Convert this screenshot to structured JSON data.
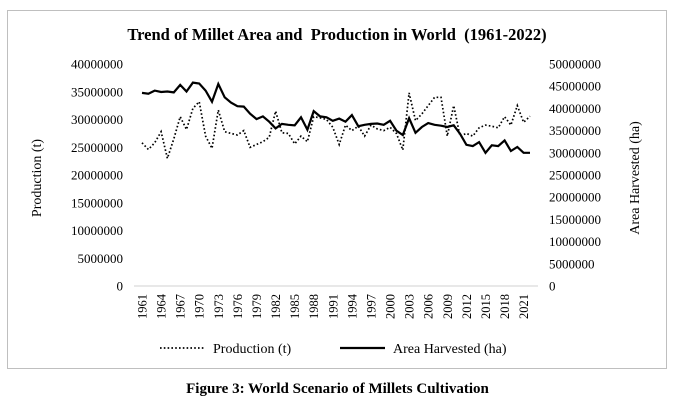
{
  "chart_data": {
    "type": "line",
    "title": "Trend of Millet Area and  Production in World  (1961-2022)",
    "xlabel": "",
    "ylabel": "Production (t)",
    "ylabel_right": "Area Harvested (ha)",
    "ylim": [
      0,
      40000000
    ],
    "ylim_right": [
      0,
      50000000
    ],
    "yticks": [
      "0",
      "5000000",
      "10000000",
      "15000000",
      "20000000",
      "25000000",
      "30000000",
      "35000000",
      "40000000"
    ],
    "yticks_right": [
      "0",
      "5000000",
      "10000000",
      "15000000",
      "20000000",
      "25000000",
      "30000000",
      "35000000",
      "40000000",
      "45000000",
      "50000000"
    ],
    "x": [
      1961,
      1962,
      1963,
      1964,
      1965,
      1966,
      1967,
      1968,
      1969,
      1970,
      1971,
      1972,
      1973,
      1974,
      1975,
      1976,
      1977,
      1978,
      1979,
      1980,
      1981,
      1982,
      1983,
      1984,
      1985,
      1986,
      1987,
      1988,
      1989,
      1990,
      1991,
      1992,
      1993,
      1994,
      1995,
      1996,
      1997,
      1998,
      1999,
      2000,
      2001,
      2002,
      2003,
      2004,
      2005,
      2006,
      2007,
      2008,
      2009,
      2010,
      2011,
      2012,
      2013,
      2014,
      2015,
      2016,
      2017,
      2018,
      2019,
      2020,
      2021,
      2022
    ],
    "xtick_labels": [
      "1961",
      "1964",
      "1967",
      "1970",
      "1973",
      "1976",
      "1979",
      "1982",
      "1985",
      "1988",
      "1991",
      "1994",
      "1997",
      "2000",
      "2003",
      "2006",
      "2009",
      "2012",
      "2015",
      "2018",
      "2021"
    ],
    "series": [
      {
        "name": "Production (t)",
        "axis": "left",
        "style": "dotted",
        "values": [
          25800000,
          24600000,
          25800000,
          27800000,
          23000000,
          26500000,
          30500000,
          28200000,
          32000000,
          33200000,
          27000000,
          24800000,
          31700000,
          27800000,
          27500000,
          27200000,
          28000000,
          25000000,
          25500000,
          26000000,
          26800000,
          31500000,
          27600000,
          27500000,
          25600000,
          27000000,
          26000000,
          30500000,
          30300000,
          30000000,
          28600000,
          25500000,
          29000000,
          28000000,
          28800000,
          27000000,
          29000000,
          28300000,
          28000000,
          28600000,
          27500000,
          24500000,
          34800000,
          29800000,
          31000000,
          32500000,
          34000000,
          34000000,
          27000000,
          32500000,
          27000000,
          27500000,
          27000000,
          28500000,
          29000000,
          28800000,
          28500000,
          30500000,
          29000000,
          32500000,
          29500000,
          30600000
        ]
      },
      {
        "name": "Area Harvested (ha)",
        "axis": "right",
        "style": "solid",
        "values": [
          43500000,
          43300000,
          44000000,
          43700000,
          43800000,
          43600000,
          45300000,
          43800000,
          45800000,
          45600000,
          44000000,
          41500000,
          45500000,
          42500000,
          41300000,
          40500000,
          40400000,
          38800000,
          37600000,
          38200000,
          37000000,
          35500000,
          36500000,
          36300000,
          36200000,
          38000000,
          35200000,
          39400000,
          38200000,
          38000000,
          37200000,
          37700000,
          37000000,
          38500000,
          36000000,
          36300000,
          36500000,
          36600000,
          36300000,
          37200000,
          35000000,
          34000000,
          37800000,
          34500000,
          35800000,
          36700000,
          36300000,
          36100000,
          35800000,
          36200000,
          34300000,
          31800000,
          31500000,
          32400000,
          30000000,
          31700000,
          31500000,
          32800000,
          30400000,
          31300000,
          30000000,
          30000000
        ]
      }
    ]
  },
  "caption": "Figure 3: World Scenario of Millets Cultivation",
  "colors": {
    "line": "#000000",
    "frame": "#bfbfbf"
  }
}
